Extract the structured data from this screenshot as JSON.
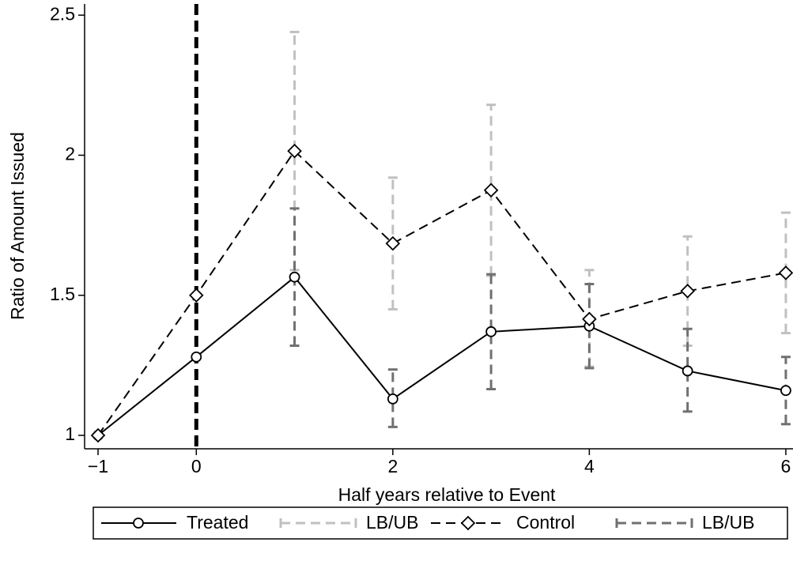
{
  "chart_data": {
    "type": "line",
    "x_label": "Half years relative to Event",
    "y_label": "Ratio of Amount Issued",
    "xlim": [
      -1.137,
      6.073
    ],
    "ylim": [
      0.952,
      2.54
    ],
    "xticks": [
      {
        "value": -1,
        "label": "−1"
      },
      0,
      2,
      4,
      6
    ],
    "yticks": [
      1,
      1.5,
      2,
      2.5
    ],
    "vline": 0,
    "series": [
      {
        "name": "Treated",
        "color": "#000000",
        "dash": "solid",
        "marker": "circle",
        "x": [
          -1,
          0,
          1,
          2,
          3,
          4,
          5,
          6
        ],
        "values": [
          1.0,
          1.28,
          1.565,
          1.13,
          1.37,
          1.39,
          1.23,
          1.16
        ]
      },
      {
        "name": "LB/UB",
        "color": "#c0c0c0",
        "dash": "dashed",
        "kind": "errorbar",
        "x": [
          1,
          2,
          3,
          4,
          5,
          6
        ],
        "lower": [
          1.59,
          1.45,
          1.57,
          1.245,
          1.32,
          1.365
        ],
        "upper": [
          2.44,
          1.92,
          2.18,
          1.59,
          1.71,
          1.795
        ]
      },
      {
        "name": "Control",
        "color": "#000000",
        "dash": "dashed",
        "marker": "diamond",
        "x": [
          -1,
          0,
          1,
          2,
          3,
          4,
          5,
          6
        ],
        "values": [
          1.0,
          1.5,
          2.015,
          1.685,
          1.875,
          1.415,
          1.515,
          1.58
        ]
      },
      {
        "name": "LB/UB",
        "color": "#707070",
        "dash": "dashed",
        "kind": "errorbar",
        "x": [
          1,
          2,
          3,
          4,
          5,
          6
        ],
        "lower": [
          1.32,
          1.03,
          1.165,
          1.24,
          1.085,
          1.04
        ],
        "upper": [
          1.81,
          1.235,
          1.575,
          1.54,
          1.38,
          1.28
        ]
      }
    ]
  }
}
